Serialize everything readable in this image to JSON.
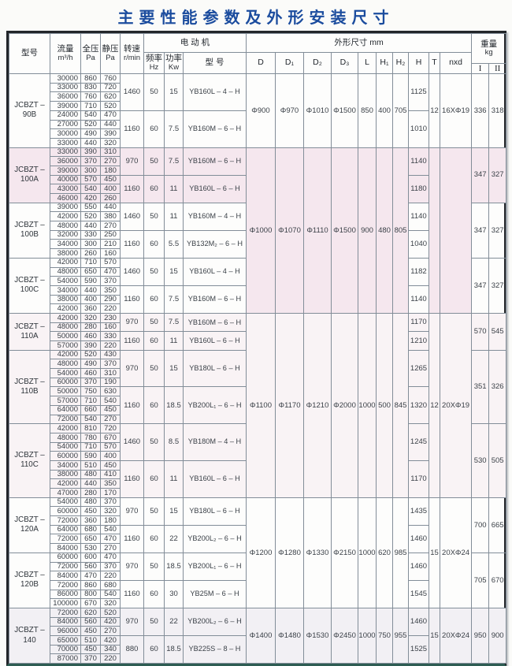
{
  "title": "主要性能参数及外形安装尺寸",
  "table": {
    "headers": {
      "model": "型号",
      "flow_label": "流量",
      "flow_unit": "m³/h",
      "total_pressure_label": "全压",
      "total_pressure_unit": "Pa",
      "static_pressure_label": "静压",
      "static_pressure_unit": "Pa",
      "speed_label": "转速",
      "speed_unit": "r/min",
      "motor_group_label": "电 动 机",
      "freq_label": "频率",
      "freq_unit": "Hz",
      "power_label": "功率",
      "power_unit": "Kw",
      "motor_model_label": "型 号",
      "dims_group_label": "外形尺寸 mm",
      "dim_cols": [
        "D",
        "D₁",
        "D₂",
        "D₃",
        "L",
        "H₁",
        "H₂",
        "H",
        "T",
        "nxd"
      ],
      "weight_label": "重量",
      "weight_unit": "kg",
      "weight_cols": [
        "I",
        "II"
      ]
    },
    "blocks": [
      {
        "model": [
          "JCBZT –",
          "90B"
        ],
        "tint": null,
        "weight": [
          "336",
          "318"
        ],
        "subs": [
          {
            "speed": "1460",
            "hz": "50",
            "kw": "15",
            "motor": "YB160L – 4 – H",
            "H": "1125",
            "rows": [
              [
                "30000",
                "860",
                "760"
              ],
              [
                "33000",
                "830",
                "720"
              ],
              [
                "36000",
                "760",
                "620"
              ],
              [
                "39000",
                "710",
                "520"
              ]
            ]
          },
          {
            "speed": "1160",
            "hz": "60",
            "kw": "7.5",
            "motor": "YB160M – 6 – H",
            "H": "1010",
            "rows": [
              [
                "24000",
                "540",
                "470"
              ],
              [
                "27000",
                "520",
                "440"
              ],
              [
                "30000",
                "490",
                "390"
              ],
              [
                "33000",
                "440",
                "320"
              ]
            ]
          }
        ]
      },
      {
        "model": [
          "JCBZT –",
          "100A"
        ],
        "tint": "#f5e7ee",
        "weight": [
          "347",
          "327"
        ],
        "subs": [
          {
            "speed": "970",
            "hz": "50",
            "kw": "7.5",
            "motor": "YB160M – 6 – H",
            "H": "1140",
            "rows": [
              [
                "33000",
                "390",
                "310"
              ],
              [
                "36000",
                "370",
                "270"
              ],
              [
                "39000",
                "300",
                "180"
              ]
            ]
          },
          {
            "speed": "1160",
            "hz": "60",
            "kw": "11",
            "motor": "YB160L – 6 – H",
            "H": "1180",
            "rows": [
              [
                "40000",
                "570",
                "450"
              ],
              [
                "43000",
                "540",
                "400"
              ],
              [
                "46000",
                "420",
                "260"
              ]
            ]
          }
        ]
      },
      {
        "model": [
          "JCBZT –",
          "100B"
        ],
        "tint": null,
        "weight": [
          "347",
          "327"
        ],
        "subs": [
          {
            "speed": "1460",
            "hz": "50",
            "kw": "11",
            "motor": "YB160M – 4 – H",
            "H": "1140",
            "rows": [
              [
                "39000",
                "550",
                "440"
              ],
              [
                "42000",
                "520",
                "380"
              ],
              [
                "48000",
                "440",
                "270"
              ]
            ]
          },
          {
            "speed": "1160",
            "hz": "60",
            "kw": "5.5",
            "motor": "YB132M₂ – 6 – H",
            "H": "1040",
            "rows": [
              [
                "32000",
                "330",
                "250"
              ],
              [
                "34000",
                "300",
                "210"
              ],
              [
                "38000",
                "260",
                "160"
              ]
            ]
          }
        ]
      },
      {
        "model": [
          "JCBZT –",
          "100C"
        ],
        "tint": null,
        "weight": [
          "347",
          "327"
        ],
        "subs": [
          {
            "speed": "1460",
            "hz": "50",
            "kw": "15",
            "motor": "YB160L – 4 – H",
            "H": "1182",
            "rows": [
              [
                "42000",
                "710",
                "570"
              ],
              [
                "48000",
                "650",
                "470"
              ],
              [
                "54000",
                "590",
                "370"
              ]
            ]
          },
          {
            "speed": "1160",
            "hz": "60",
            "kw": "7.5",
            "motor": "YB160M – 6 – H",
            "H": "1140",
            "rows": [
              [
                "34000",
                "440",
                "350"
              ],
              [
                "38000",
                "400",
                "290"
              ],
              [
                "42000",
                "360",
                "220"
              ]
            ]
          }
        ]
      },
      {
        "model": [
          "JCBZT –",
          "110A"
        ],
        "tint": "#f9f3f5",
        "weight": [
          "570",
          "545"
        ],
        "subs": [
          {
            "speed": "970",
            "hz": "50",
            "kw": "7.5",
            "motor": "YB160M – 6 – H",
            "H": "1170",
            "rows": [
              [
                "42000",
                "320",
                "230"
              ],
              [
                "48000",
                "280",
                "160"
              ]
            ]
          },
          {
            "speed": "1160",
            "hz": "60",
            "kw": "11",
            "motor": "YB160L – 6 – H",
            "H": "1210",
            "rows": [
              [
                "50000",
                "460",
                "330"
              ],
              [
                "57000",
                "390",
                "220"
              ]
            ]
          }
        ]
      },
      {
        "model": [
          "JCBZT –",
          "110B"
        ],
        "tint": "#f9f3f5",
        "weight": [
          "351",
          "326"
        ],
        "subs": [
          {
            "speed": "970",
            "hz": "50",
            "kw": "15",
            "motor": "YB180L – 6 – H",
            "H": "1265",
            "rows": [
              [
                "42000",
                "520",
                "430"
              ],
              [
                "48000",
                "490",
                "370"
              ],
              [
                "54000",
                "460",
                "310"
              ],
              [
                "60000",
                "370",
                "190"
              ]
            ]
          },
          {
            "speed": "1160",
            "hz": "60",
            "kw": "18.5",
            "motor": "YB200L₁ – 6 – H",
            "H": "1320",
            "rows": [
              [
                "50000",
                "750",
                "630"
              ],
              [
                "57000",
                "710",
                "540"
              ],
              [
                "64000",
                "660",
                "450"
              ],
              [
                "72000",
                "540",
                "270"
              ]
            ]
          }
        ]
      },
      {
        "model": [
          "JCBZT –",
          "110C"
        ],
        "tint": "#f9f3f5",
        "weight": [
          "530",
          "505"
        ],
        "subs": [
          {
            "speed": "1460",
            "hz": "50",
            "kw": "8.5",
            "motor": "YB180M – 4 – H",
            "H": "1245",
            "rows": [
              [
                "42000",
                "810",
                "720"
              ],
              [
                "48000",
                "780",
                "670"
              ],
              [
                "54000",
                "710",
                "570"
              ],
              [
                "60000",
                "590",
                "400"
              ]
            ]
          },
          {
            "speed": "1160",
            "hz": "60",
            "kw": "11",
            "motor": "YB160L – 6 – H",
            "H": "1170",
            "rows": [
              [
                "34000",
                "510",
                "450"
              ],
              [
                "38000",
                "480",
                "410"
              ],
              [
                "42000",
                "440",
                "350"
              ],
              [
                "47000",
                "280",
                "170"
              ]
            ]
          }
        ]
      },
      {
        "model": [
          "JCBZT –",
          "120A"
        ],
        "tint": null,
        "weight": [
          "700",
          "665"
        ],
        "subs": [
          {
            "speed": "970",
            "hz": "50",
            "kw": "15",
            "motor": "YB180L – 6 – H",
            "H": "1435",
            "rows": [
              [
                "54000",
                "480",
                "370"
              ],
              [
                "60000",
                "450",
                "320"
              ],
              [
                "72000",
                "360",
                "180"
              ]
            ]
          },
          {
            "speed": "1160",
            "hz": "60",
            "kw": "22",
            "motor": "YB200L₂ – 6 – H",
            "H": "1460",
            "rows": [
              [
                "64000",
                "680",
                "540"
              ],
              [
                "72000",
                "650",
                "470"
              ],
              [
                "84000",
                "530",
                "270"
              ]
            ]
          }
        ]
      },
      {
        "model": [
          "JCBZT –",
          "120B"
        ],
        "tint": null,
        "weight": [
          "705",
          "670"
        ],
        "subs": [
          {
            "speed": "970",
            "hz": "50",
            "kw": "18.5",
            "motor": "YB200L₁ – 6 – H",
            "H": "1460",
            "rows": [
              [
                "60000",
                "600",
                "470"
              ],
              [
                "72000",
                "560",
                "370"
              ],
              [
                "84000",
                "470",
                "220"
              ]
            ]
          },
          {
            "speed": "1160",
            "hz": "60",
            "kw": "30",
            "motor": "YB25M – 6 – H",
            "H": "1545",
            "rows": [
              [
                "72000",
                "860",
                "680"
              ],
              [
                "86000",
                "800",
                "540"
              ],
              [
                "100000",
                "670",
                "320"
              ]
            ]
          }
        ]
      },
      {
        "model": [
          "JCBZT –",
          "140"
        ],
        "tint": "#f2f0f4",
        "weight": [
          "950",
          "900"
        ],
        "subs": [
          {
            "speed": "970",
            "hz": "50",
            "kw": "22",
            "motor": "YB200L₂ – 6 – H",
            "H": "1460",
            "rows": [
              [
                "72000",
                "620",
                "520"
              ],
              [
                "84000",
                "560",
                "420"
              ],
              [
                "96000",
                "450",
                "270"
              ]
            ]
          },
          {
            "speed": "880",
            "hz": "60",
            "kw": "18.5",
            "motor": "YB225S – 8 – H",
            "H": "1525",
            "rows": [
              [
                "65000",
                "510",
                "420"
              ],
              [
                "70000",
                "450",
                "340"
              ],
              [
                "87000",
                "370",
                "220"
              ]
            ]
          }
        ]
      }
    ],
    "dim_groups": [
      {
        "blocks": [
          0,
          0
        ],
        "dims": [
          "Φ900",
          "Φ970",
          "Φ1010",
          "Φ1500",
          "850",
          "400",
          "705"
        ],
        "T": "12",
        "nxd": "16XΦ19"
      },
      {
        "blocks": [
          1,
          3
        ],
        "dims": [
          "Φ1000",
          "Φ1070",
          "Φ1110",
          "Φ1500",
          "900",
          "480",
          "805"
        ],
        "T": "",
        "nxd": ""
      },
      {
        "blocks": [
          4,
          6
        ],
        "dims": [
          "Φ1100",
          "Φ1170",
          "Φ1210",
          "Φ2000",
          "1000",
          "500",
          "845"
        ],
        "T": "12",
        "nxd": "20XΦ19"
      },
      {
        "blocks": [
          7,
          8
        ],
        "dims": [
          "Φ1200",
          "Φ1280",
          "Φ1330",
          "Φ2150",
          "1000",
          "620",
          "985"
        ],
        "T": "15",
        "nxd": "20XΦ24"
      },
      {
        "blocks": [
          9,
          9
        ],
        "dims": [
          "Φ1400",
          "Φ1480",
          "Φ1530",
          "Φ2450",
          "1000",
          "750",
          "955"
        ],
        "T": "15",
        "nxd": "20XΦ24"
      }
    ]
  }
}
